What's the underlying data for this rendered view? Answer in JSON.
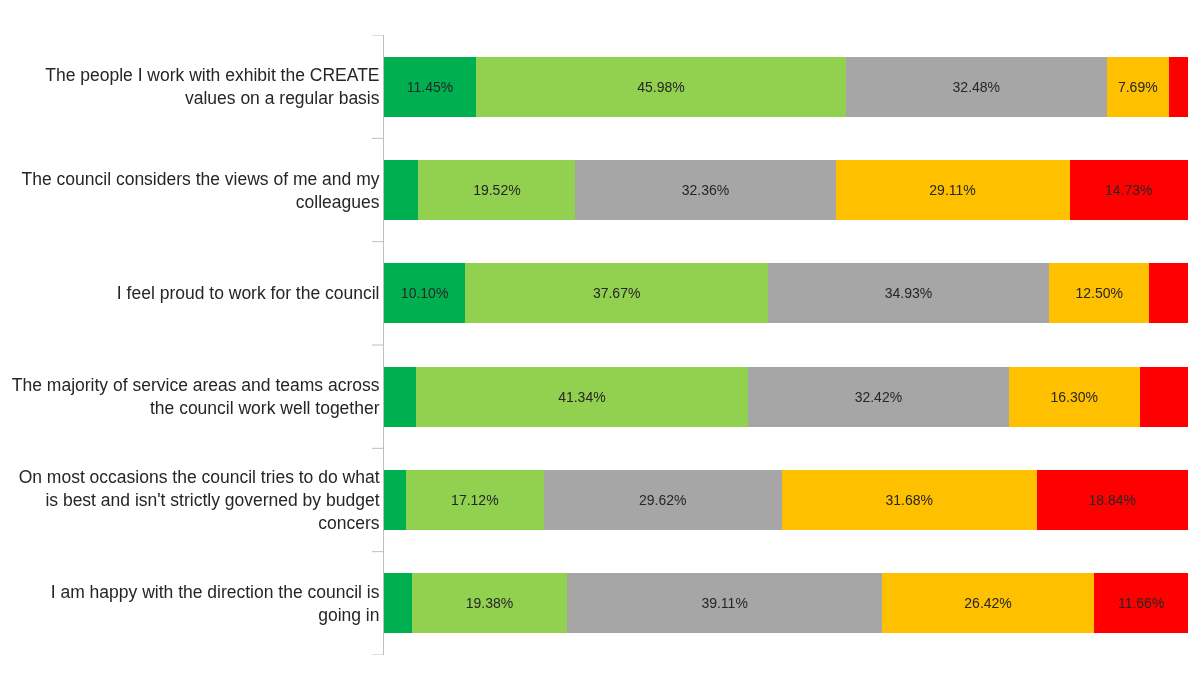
{
  "chart_data": {
    "type": "bar",
    "orientation": "horizontal",
    "stacked": true,
    "categories": [
      "The people I work with exhibit the CREATE values on a regular basis",
      "The council considers the views of me and my colleagues",
      "I feel proud to work for the council",
      "The majority of service areas and teams across the council work well together",
      "On most occasions the council tries to do what is best and isn't strictly governed by budget concers",
      "I am happy with the direction the council is going in"
    ],
    "series": [
      {
        "color": "#00b050",
        "values": [
          11.45,
          4.28,
          10.1,
          3.94,
          2.74,
          3.43
        ],
        "value_labels": [
          "11.45%",
          null,
          "10.10%",
          null,
          null,
          null
        ]
      },
      {
        "color": "#92d050",
        "values": [
          45.98,
          19.52,
          37.67,
          41.34,
          17.12,
          19.38
        ],
        "value_labels": [
          "45.98%",
          "19.52%",
          "37.67%",
          "41.34%",
          "17.12%",
          "19.38%"
        ]
      },
      {
        "color": "#a6a6a6",
        "values": [
          32.48,
          32.36,
          34.93,
          32.42,
          29.62,
          39.11
        ],
        "value_labels": [
          "32.48%",
          "32.36%",
          "34.93%",
          "32.42%",
          "29.62%",
          "39.11%"
        ]
      },
      {
        "color": "#ffc000",
        "values": [
          7.69,
          29.11,
          12.5,
          16.3,
          31.68,
          26.42
        ],
        "value_labels": [
          "7.69%",
          "29.11%",
          "12.50%",
          "16.30%",
          "31.68%",
          "26.42%"
        ]
      },
      {
        "color": "#ff0000",
        "values": [
          2.4,
          14.73,
          4.8,
          6.0,
          18.84,
          11.66
        ],
        "value_labels": [
          null,
          "14.73%",
          null,
          null,
          "18.84%",
          "11.66%"
        ]
      }
    ],
    "xlim": [
      0,
      100
    ],
    "tick_labels": "y"
  }
}
